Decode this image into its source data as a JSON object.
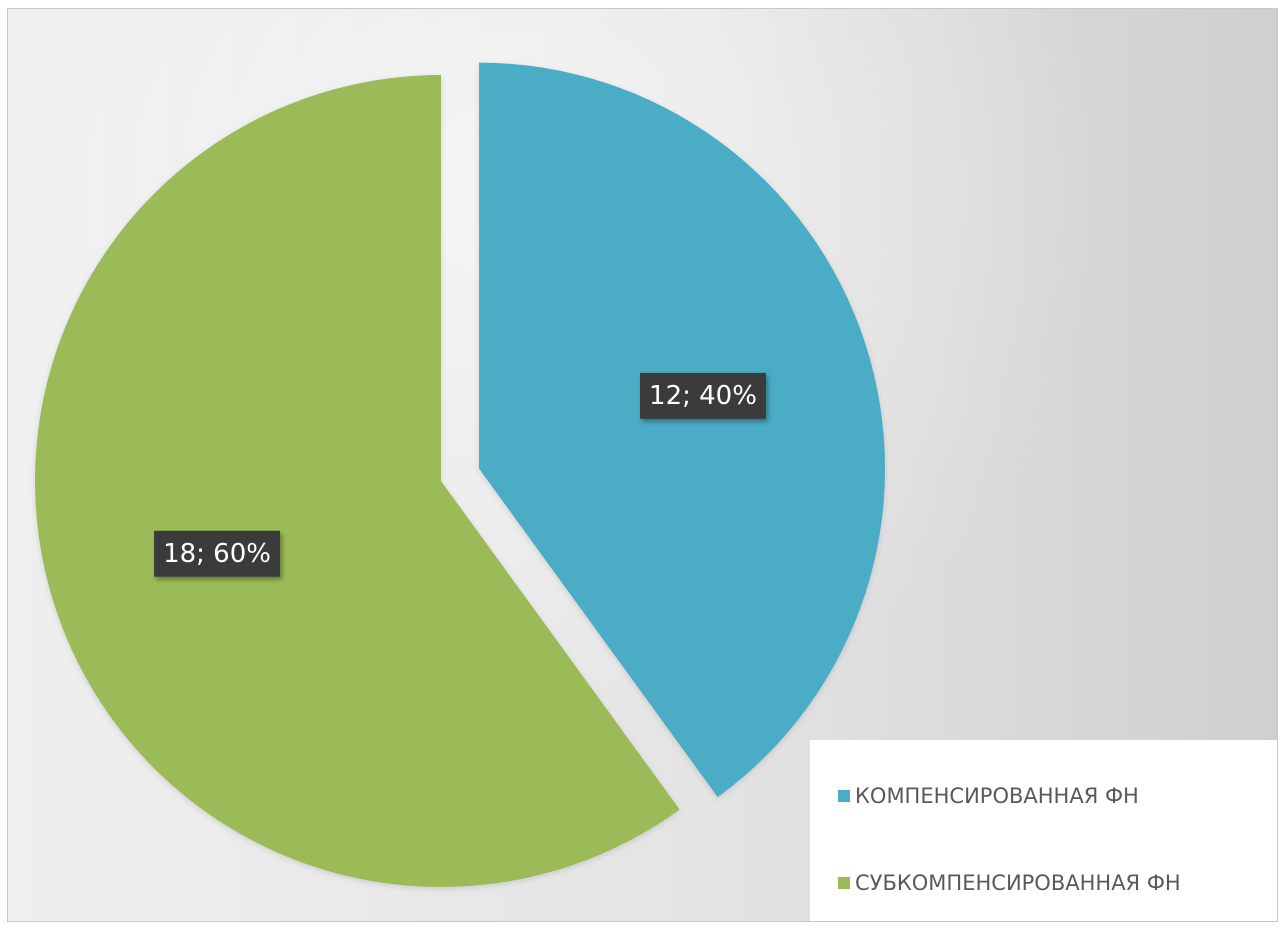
{
  "chart_data": {
    "type": "pie",
    "title": "",
    "slices": [
      {
        "name": "КОМПЕНСИРОВАННАЯ ФН",
        "value": 12,
        "percent": "40%",
        "label": "12; 40%",
        "color": "#4bacc6",
        "exploded": true
      },
      {
        "name": "СУБКОМПЕНСИРОВАННАЯ ФН",
        "value": 18,
        "percent": "60%",
        "label": "18; 60%",
        "color": "#9bbb59",
        "exploded": false
      }
    ],
    "legend": {
      "position": "bottom-right",
      "items": [
        "КОМПЕНСИРОВАННАЯ ФН",
        "СУБКОМПЕНСИРОВАННАЯ ФН"
      ]
    },
    "data_label_background": "#3a3a3a",
    "start_angle": "12 o'clock, clockwise"
  }
}
